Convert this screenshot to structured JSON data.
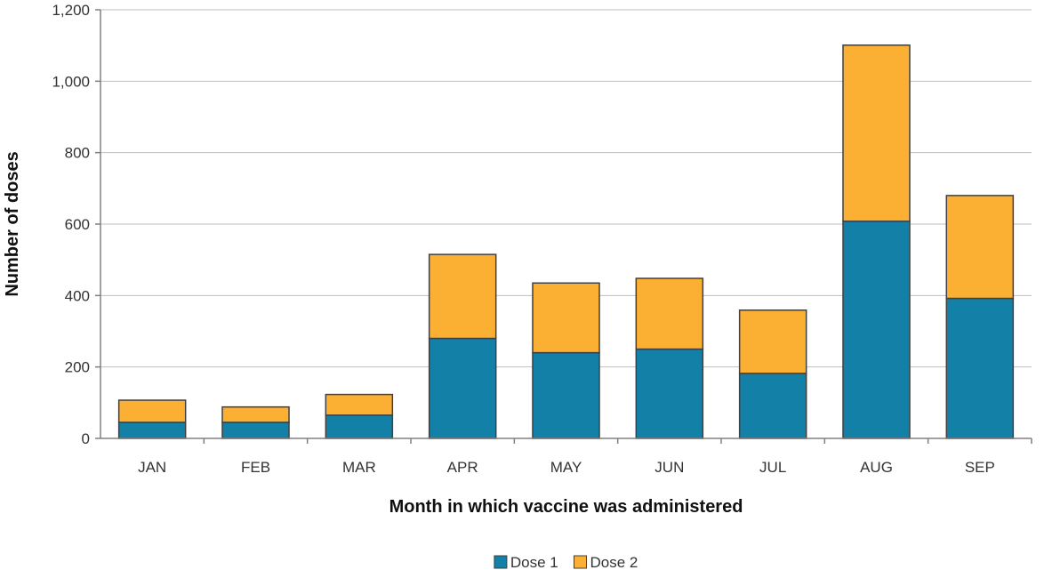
{
  "chart_data": {
    "type": "bar",
    "stacked": true,
    "title": "",
    "xlabel": "Month in which vaccine was administered",
    "ylabel": "Number of doses",
    "categories": [
      "JAN",
      "FEB",
      "MAR",
      "APR",
      "MAY",
      "JUN",
      "JUL",
      "AUG",
      "SEP"
    ],
    "series": [
      {
        "name": "Dose 1",
        "color": "#1380a8",
        "values": [
          45,
          45,
          65,
          280,
          240,
          250,
          182,
          608,
          392
        ]
      },
      {
        "name": "Dose 2",
        "color": "#fbb034",
        "values": [
          62,
          43,
          58,
          235,
          195,
          198,
          177,
          493,
          288
        ]
      }
    ],
    "ylim": [
      0,
      1200
    ],
    "yticks": [
      {
        "value": 0,
        "label": "0"
      },
      {
        "value": 200,
        "label": "200"
      },
      {
        "value": 400,
        "label": "400"
      },
      {
        "value": 600,
        "label": "600"
      },
      {
        "value": 800,
        "label": "800"
      },
      {
        "value": 1000,
        "label": "1,000"
      },
      {
        "value": 1200,
        "label": "1,200"
      }
    ],
    "grid": true,
    "legend_position": "bottom"
  }
}
